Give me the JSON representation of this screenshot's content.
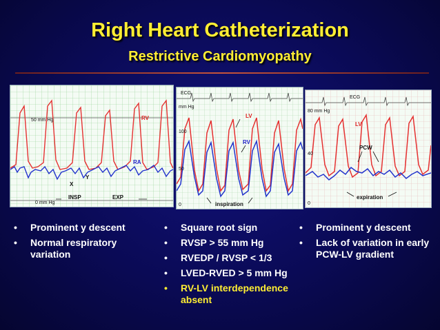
{
  "title": "Right Heart Catheterization",
  "subtitle": "Restrictive Cardiomyopathy",
  "panels": {
    "p1": {
      "scale_50": "50 mm Hg",
      "scale_0": "0 mm Hg",
      "rv": "RV",
      "ra": "RA",
      "x": "X",
      "y": "Y",
      "insp": "INSP",
      "exp": "EXP"
    },
    "p2": {
      "ecg": "ECG",
      "mmhg": "mm Hg",
      "t100": "100",
      "t50": "50",
      "t0": "0",
      "lv": "LV",
      "rv": "RV",
      "inspiration": "inspiration"
    },
    "p3": {
      "ecg": "ECG",
      "mmhg": "80 mm Hg",
      "t40": "40",
      "t0": "0",
      "lv": "LV",
      "pcw": "PCW",
      "expiration": "expiration"
    }
  },
  "columns": {
    "c1": [
      "Prominent y descent",
      "Normal respiratory variation"
    ],
    "c2": [
      "Square root sign",
      "RVSP > 55 mm Hg",
      "RVEDP / RVSP < 1/3",
      "LVED-RVED > 5 mm Hg",
      "RV-LV interdependence absent"
    ],
    "c3": [
      "Prominent y descent",
      "Lack of variation in early PCW-LV gradient"
    ]
  },
  "colors": {
    "title": "#ffee33",
    "background": "#0a0a55",
    "red_trace": "#e53030",
    "blue_trace": "#2233cc"
  }
}
